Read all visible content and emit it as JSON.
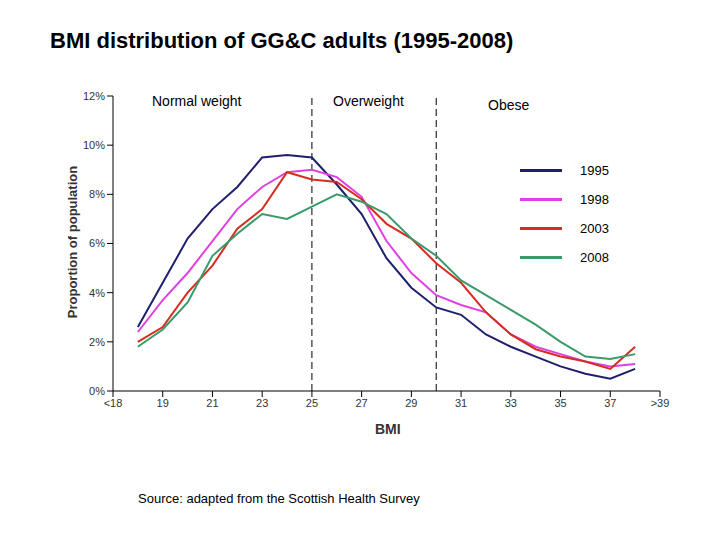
{
  "chart_data": {
    "type": "line",
    "title": "BMI distribution of GG&C adults (1995-2008)",
    "x_label": "BMI",
    "y_label": "Proportion of population",
    "source": "Source: adapted from the Scottish Health Survey",
    "annotations": [
      "Normal weight",
      "Overweight",
      "Obese"
    ],
    "reference_lines": [
      25,
      30
    ],
    "x": [
      18,
      19,
      20,
      21,
      22,
      23,
      24,
      25,
      26,
      27,
      28,
      29,
      30,
      31,
      32,
      33,
      34,
      35,
      36,
      37,
      38
    ],
    "xlim": [
      17,
      39
    ],
    "xticks": [
      {
        "value": 17,
        "label": "<18"
      },
      19,
      21,
      23,
      25,
      27,
      29,
      31,
      33,
      35,
      37,
      {
        "value": 39,
        "label": ">39"
      }
    ],
    "ylim": [
      0,
      12
    ],
    "yticks": [
      {
        "value": 0,
        "label": "0%"
      },
      {
        "value": 2,
        "label": "2%"
      },
      {
        "value": 4,
        "label": "4%"
      },
      {
        "value": 6,
        "label": "6%"
      },
      {
        "value": 8,
        "label": "8%"
      },
      {
        "value": 10,
        "label": "10%"
      },
      {
        "value": 12,
        "label": "12%"
      }
    ],
    "grid": false,
    "legend": "right",
    "series": [
      {
        "name": "1995",
        "color": "#1f1f6e",
        "values": [
          2.6,
          4.4,
          6.2,
          7.4,
          8.3,
          9.5,
          9.6,
          9.5,
          8.4,
          7.2,
          5.4,
          4.2,
          3.4,
          3.1,
          2.3,
          1.8,
          1.4,
          1.0,
          0.7,
          0.5,
          0.9
        ]
      },
      {
        "name": "1998",
        "color": "#e040e0",
        "values": [
          2.4,
          3.7,
          4.8,
          6.1,
          7.4,
          8.3,
          8.9,
          9.0,
          8.7,
          7.9,
          6.1,
          4.8,
          3.9,
          3.5,
          3.2,
          2.3,
          1.8,
          1.5,
          1.2,
          1.0,
          1.1
        ]
      },
      {
        "name": "2003",
        "color": "#d62d20",
        "values": [
          2.0,
          2.6,
          4.0,
          5.1,
          6.6,
          7.4,
          8.9,
          8.6,
          8.5,
          7.8,
          6.8,
          6.2,
          5.2,
          4.4,
          3.2,
          2.3,
          1.7,
          1.4,
          1.2,
          0.9,
          1.8
        ]
      },
      {
        "name": "2008",
        "color": "#3a9a6a",
        "values": [
          1.8,
          2.5,
          3.6,
          5.5,
          6.4,
          7.2,
          7.0,
          7.5,
          8.0,
          7.7,
          7.2,
          6.2,
          5.5,
          4.5,
          3.9,
          3.3,
          2.7,
          2.0,
          1.4,
          1.3,
          1.5
        ]
      }
    ]
  }
}
